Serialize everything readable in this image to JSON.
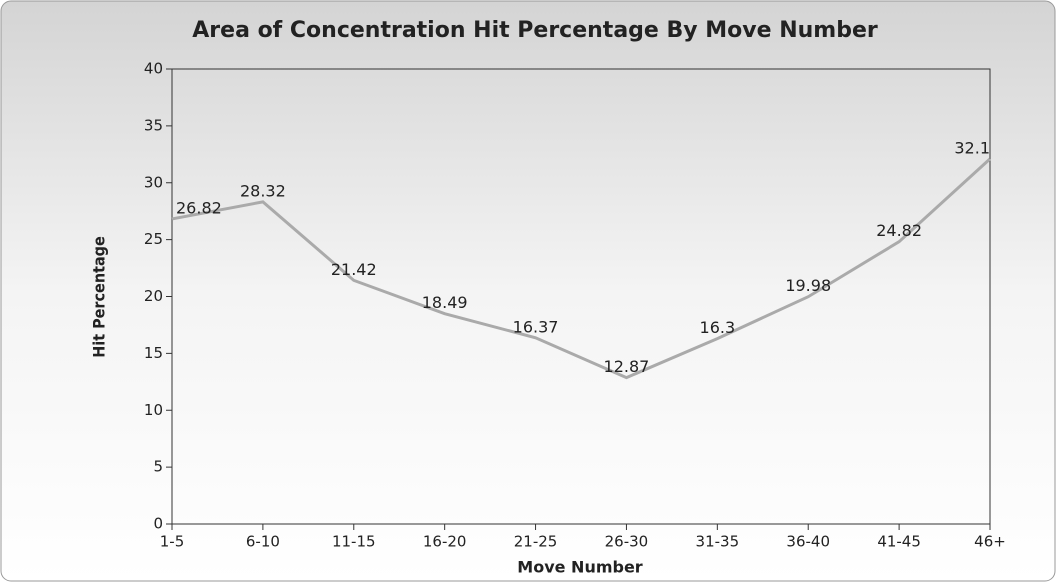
{
  "chart_data": {
    "type": "line",
    "title": "Area of Concentration Hit Percentage By Move Number",
    "x_label": "Move Number",
    "y_label": "Hit Percentage",
    "categories": [
      "1-5",
      "6-10",
      "11-15",
      "16-20",
      "21-25",
      "26-30",
      "31-35",
      "36-40",
      "41-45",
      "46+"
    ],
    "series": [
      {
        "name": "Hit Percentage",
        "color": "#aaaaaa",
        "values": [
          26.82,
          28.32,
          21.42,
          18.49,
          16.37,
          12.87,
          16.3,
          19.98,
          24.82,
          32.1
        ]
      }
    ],
    "ylim": [
      0,
      40
    ],
    "yticks": [
      0,
      5,
      10,
      15,
      20,
      25,
      30,
      35,
      40
    ]
  }
}
